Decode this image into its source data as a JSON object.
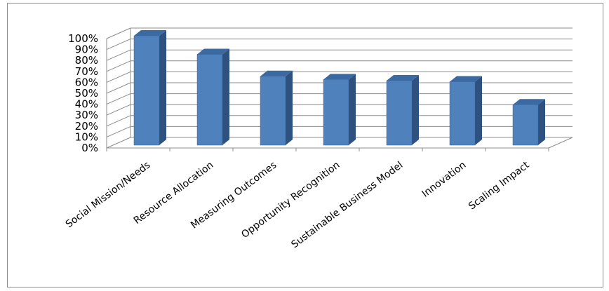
{
  "chart_data": {
    "type": "bar",
    "style": "3d-column",
    "categories": [
      "Social Mission/Needs",
      "Resource Allocation",
      "Measuring Outcomes",
      "Opportunity Recognition",
      "Sustainable Business Model",
      "Innovation",
      "Scaling Impact"
    ],
    "values": [
      100,
      83,
      63,
      60,
      59,
      58,
      37
    ],
    "ylim": [
      0,
      100
    ],
    "yticks": [
      "0%",
      "10%",
      "20%",
      "30%",
      "40%",
      "50%",
      "60%",
      "70%",
      "80%",
      "90%",
      "100%"
    ],
    "grid": true,
    "legend": "none",
    "colors": {
      "bar_front": "#4f81bd",
      "bar_side": "#2f5180",
      "bar_top": "#3b6aa3",
      "grid": "#8c8c8c"
    }
  }
}
